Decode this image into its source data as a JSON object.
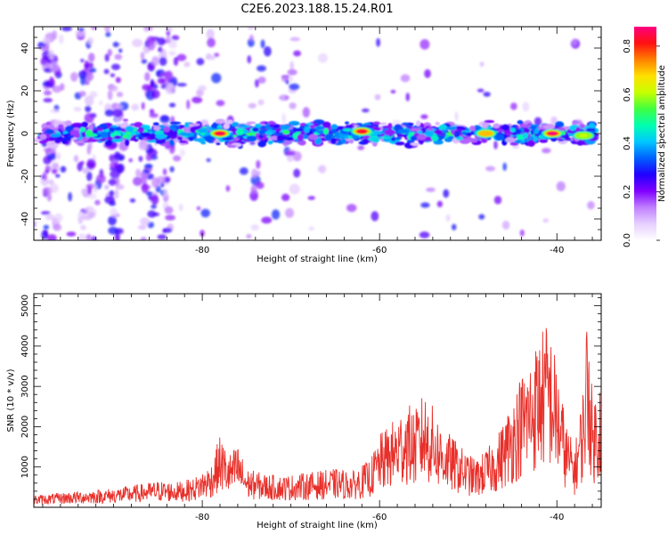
{
  "title": "C2E6.2023.188.15.24.R01",
  "colors": {
    "snr_line": "#e8302a",
    "colormap": [
      "#ffffff",
      "#e6d0ff",
      "#c080ff",
      "#8000ff",
      "#2000ff",
      "#0060ff",
      "#00c8ff",
      "#00ffb0",
      "#40ff40",
      "#c8ff00",
      "#ffe000",
      "#ff8000",
      "#ff1010",
      "#ff0080"
    ]
  },
  "chart_data": [
    {
      "type": "heatmap",
      "xlabel": "Height of straight line (km)",
      "ylabel": "Frequency (Hz)",
      "xlim": [
        -99,
        -35
      ],
      "ylim": [
        -50,
        50
      ],
      "xticks": [
        {
          "value": -80,
          "label": "-80"
        },
        {
          "value": -60,
          "label": "-60"
        },
        {
          "value": -40,
          "label": "-40"
        }
      ],
      "yticks": [
        {
          "value": -40,
          "label": "-40"
        },
        {
          "value": -20,
          "label": "-20"
        },
        {
          "value": 0,
          "label": "0"
        },
        {
          "value": 20,
          "label": "20"
        },
        {
          "value": 40,
          "label": "40"
        }
      ],
      "colorbar": {
        "label": "Normalized spectral amplitude",
        "range": [
          0,
          0.88
        ],
        "ticks": [
          {
            "value": 0.0,
            "label": "0.0"
          },
          {
            "value": 0.2,
            "label": "0.2"
          },
          {
            "value": 0.4,
            "label": "0.4"
          },
          {
            "value": 0.6,
            "label": "0.6"
          },
          {
            "value": 0.8,
            "label": "0.8"
          }
        ]
      },
      "band": {
        "center_hz": 0,
        "halfwidth_hz": 5
      },
      "hotspots": [
        {
          "height_km": -78,
          "freq_hz": 0,
          "amplitude": 0.86
        },
        {
          "height_km": -62,
          "freq_hz": 1,
          "amplitude": 0.84
        },
        {
          "height_km": -48,
          "freq_hz": 0,
          "amplitude": 0.7
        },
        {
          "height_km": -40.5,
          "freq_hz": 0,
          "amplitude": 0.88
        },
        {
          "height_km": -37,
          "freq_hz": -1,
          "amplitude": 0.62
        }
      ]
    },
    {
      "type": "line",
      "xlabel": "Height of straight line (km)",
      "ylabel": "SNR (10 * v/v)",
      "xlim": [
        -99,
        -35
      ],
      "ylim": [
        0,
        5300
      ],
      "xticks": [
        {
          "value": -80,
          "label": "-80"
        },
        {
          "value": -60,
          "label": "-60"
        },
        {
          "value": -40,
          "label": "-40"
        }
      ],
      "yticks": [
        {
          "value": 1000,
          "label": "1000"
        },
        {
          "value": 2000,
          "label": "2000"
        },
        {
          "value": 3000,
          "label": "3000"
        },
        {
          "value": 4000,
          "label": "4000"
        },
        {
          "value": 5000,
          "label": "5000"
        }
      ],
      "series": [
        {
          "x": [
            -99,
            -97,
            -95,
            -93,
            -91,
            -89,
            -87,
            -85,
            -83,
            -81,
            -79,
            -78,
            -77,
            -76,
            -75,
            -73,
            -71,
            -69,
            -67,
            -65,
            -63,
            -61,
            -60,
            -59,
            -58,
            -57,
            -56,
            -55,
            -54,
            -53,
            -52,
            -51,
            -50,
            -49,
            -48,
            -47,
            -46,
            -45,
            -44,
            -43,
            -42,
            -41,
            -40,
            -39,
            -38,
            -37,
            -36.5,
            -36,
            -35.5,
            -35
          ],
          "y": [
            250,
            280,
            320,
            350,
            380,
            420,
            480,
            550,
            520,
            600,
            900,
            1500,
            1100,
            1300,
            800,
            700,
            650,
            700,
            750,
            800,
            750,
            1000,
            1500,
            1700,
            1900,
            2200,
            2000,
            2400,
            2100,
            1700,
            1500,
            1300,
            1100,
            1000,
            1200,
            1400,
            1800,
            2300,
            2800,
            3100,
            3600,
            3900,
            3000,
            1800,
            1200,
            2600,
            4500,
            2200,
            2500,
            2800
          ]
        }
      ]
    }
  ]
}
